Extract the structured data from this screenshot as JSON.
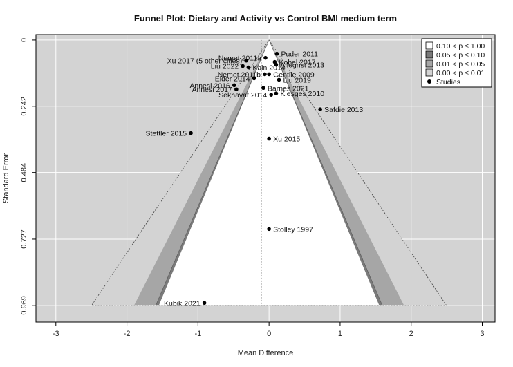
{
  "chart_data": {
    "type": "scatter",
    "subtype": "contour-enhanced funnel plot",
    "title": "Funnel Plot: Dietary and Activity vs Control BMI medium term",
    "xlabel": "Mean Difference",
    "ylabel": "Standard Error",
    "xlim": [
      -3.0,
      3.0
    ],
    "ylim": [
      0,
      0.969
    ],
    "y_reversed": true,
    "x_ticks": [
      "-3",
      "-2",
      "-1",
      "0",
      "1",
      "2",
      "3"
    ],
    "y_ticks": [
      "0",
      "0.242",
      "0.484",
      "0.727",
      "0.969"
    ],
    "pooled_estimate": -0.11,
    "grid": true,
    "legend_position": "top-right",
    "legend": [
      {
        "label": "0.10 < p ≤ 1.00",
        "color": "#ffffff"
      },
      {
        "label": "0.05 < p ≤ 0.10",
        "color": "#7a7a7a"
      },
      {
        "label": "0.01 < p ≤ 0.05",
        "color": "#a6a6a6"
      },
      {
        "label": "0.00 < p ≤ 0.01",
        "color": "#d3d3d3"
      },
      {
        "label": "Studies",
        "color": "#000000"
      }
    ],
    "points": [
      {
        "label": "Puder 2011",
        "x": 0.11,
        "y": 0.05
      },
      {
        "label": "Nemet 2011a",
        "x": -0.05,
        "y": 0.065
      },
      {
        "label": "Kobel 2017",
        "x": 0.08,
        "y": 0.08
      },
      {
        "label": "Xu 2017 (5 other cities)",
        "x": -0.32,
        "y": 0.075
      },
      {
        "label": "Allegrist 2013",
        "x": 0.1,
        "y": 0.09
      },
      {
        "label": "Liu 2022",
        "x": -0.37,
        "y": 0.095
      },
      {
        "label": "Kain 2014",
        "x": -0.29,
        "y": 0.1
      },
      {
        "label": "Nemet 2011b",
        "x": -0.06,
        "y": 0.125
      },
      {
        "label": "Gentile 2009",
        "x": 0.0,
        "y": 0.125
      },
      {
        "label": "Elder 2014",
        "x": -0.21,
        "y": 0.14
      },
      {
        "label": "Liu 2019",
        "x": 0.14,
        "y": 0.145
      },
      {
        "label": "Annesi 2016",
        "x": -0.49,
        "y": 0.165
      },
      {
        "label": "Barnes 2021",
        "x": -0.08,
        "y": 0.175
      },
      {
        "label": "Annesi 2017",
        "x": -0.46,
        "y": 0.18
      },
      {
        "label": "Klesges 2010",
        "x": 0.1,
        "y": 0.195
      },
      {
        "label": "Sekhavat 2014",
        "x": 0.03,
        "y": 0.2
      },
      {
        "label": "Safdie 2013",
        "x": 0.72,
        "y": 0.253
      },
      {
        "label": "Stettler 2015",
        "x": -1.1,
        "y": 0.34
      },
      {
        "label": "Xu 2015",
        "x": 0.0,
        "y": 0.36
      },
      {
        "label": "Stolley 1997",
        "x": 0.0,
        "y": 0.69
      },
      {
        "label": "Kubik 2021",
        "x": -0.91,
        "y": 0.96
      }
    ],
    "colors": {
      "background": "#d3d3d3",
      "region_001": "#d3d3d3",
      "region_005": "#a6a6a6",
      "region_010": "#7a7a7a",
      "region_ns": "#ffffff",
      "points": "#000000"
    }
  }
}
